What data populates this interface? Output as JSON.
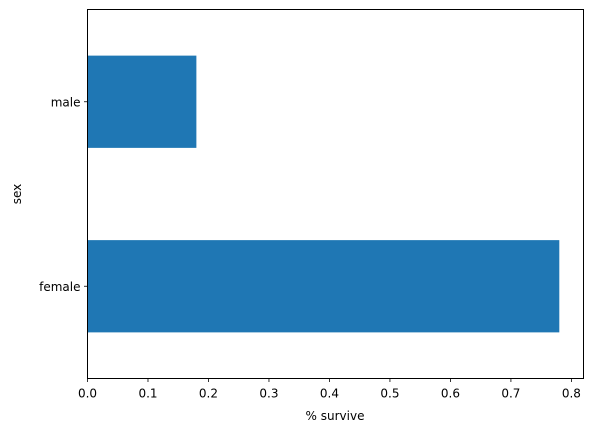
{
  "chart_data": {
    "type": "bar",
    "orientation": "horizontal",
    "categories": [
      "male",
      "female"
    ],
    "values": [
      0.18,
      0.78
    ],
    "bar_color": "#1f77b4",
    "xlabel": "% survive",
    "ylabel": "sex",
    "xlim": [
      0,
      0.82
    ],
    "xticks": [
      "0.0",
      "0.1",
      "0.2",
      "0.3",
      "0.4",
      "0.5",
      "0.6",
      "0.7",
      "0.8"
    ],
    "grid": false,
    "legend": "none"
  }
}
